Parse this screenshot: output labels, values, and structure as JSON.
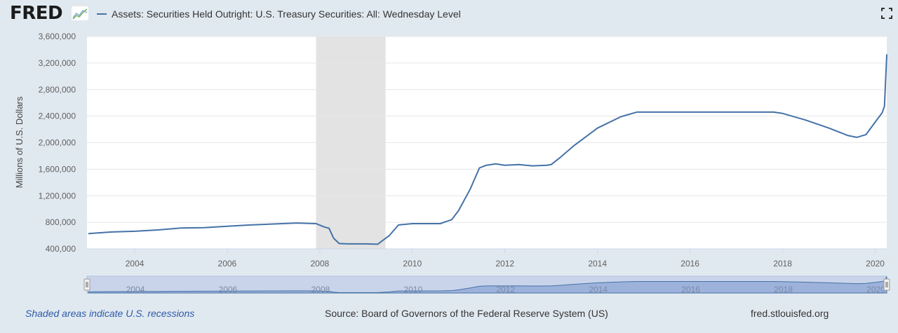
{
  "header": {
    "logo_text": "FRED",
    "legend_label": "Assets: Securities Held Outright: U.S. Treasury Securities: All: Wednesday Level"
  },
  "colors": {
    "series": "#4572a7",
    "recession": "#e3e3e3",
    "background": "#e1e9f0",
    "navigator": "#8ea7d6"
  },
  "icons": {
    "logo": "fred-line-chart-icon",
    "fullscreen": "fullscreen-icon"
  },
  "chart_data": {
    "type": "line",
    "title": "",
    "xlabel": "",
    "ylabel": "Millions of U.S. Dollars",
    "xlim": [
      2002.97,
      2020.25
    ],
    "ylim": [
      400000,
      3600000
    ],
    "yticks": [
      400000,
      800000,
      1200000,
      1600000,
      2000000,
      2400000,
      2800000,
      3200000,
      3600000
    ],
    "ytick_labels": [
      "400,000",
      "800,000",
      "1,200,000",
      "1,600,000",
      "2,000,000",
      "2,400,000",
      "2,800,000",
      "3,200,000",
      "3,600,000"
    ],
    "xticks": [
      2004,
      2006,
      2008,
      2010,
      2012,
      2014,
      2016,
      2018,
      2020
    ],
    "xtick_labels": [
      "2004",
      "2006",
      "2008",
      "2010",
      "2012",
      "2014",
      "2016",
      "2018",
      "2020"
    ],
    "grid": "horizontal",
    "recessions": [
      [
        2007.92,
        2009.42
      ]
    ],
    "series": [
      {
        "name": "Assets: Securities Held Outright: U.S. Treasury Securities: All: Wednesday Level",
        "x": [
          2003.0,
          2003.5,
          2004.0,
          2004.5,
          2005.0,
          2005.5,
          2006.0,
          2006.5,
          2007.0,
          2007.5,
          2007.92,
          2008.1,
          2008.2,
          2008.3,
          2008.42,
          2008.6,
          2009.0,
          2009.25,
          2009.5,
          2009.7,
          2010.0,
          2010.6,
          2010.85,
          2011.0,
          2011.25,
          2011.45,
          2011.6,
          2011.8,
          2012.0,
          2012.3,
          2012.6,
          2012.9,
          2013.0,
          2013.2,
          2013.5,
          2014.0,
          2014.5,
          2014.85,
          2015.0,
          2016.0,
          2017.0,
          2017.8,
          2018.0,
          2018.5,
          2019.0,
          2019.4,
          2019.6,
          2019.8,
          2020.0,
          2020.15,
          2020.2,
          2020.25
        ],
        "values": [
          630000,
          655000,
          665000,
          685000,
          715000,
          720000,
          740000,
          760000,
          775000,
          790000,
          780000,
          730000,
          710000,
          560000,
          480000,
          475000,
          475000,
          470000,
          600000,
          760000,
          780000,
          780000,
          840000,
          980000,
          1300000,
          1620000,
          1660000,
          1680000,
          1660000,
          1670000,
          1650000,
          1660000,
          1670000,
          1780000,
          1960000,
          2220000,
          2390000,
          2460000,
          2460000,
          2460000,
          2460000,
          2460000,
          2440000,
          2340000,
          2220000,
          2110000,
          2080000,
          2120000,
          2310000,
          2450000,
          2550000,
          3330000
        ]
      }
    ]
  }
}
